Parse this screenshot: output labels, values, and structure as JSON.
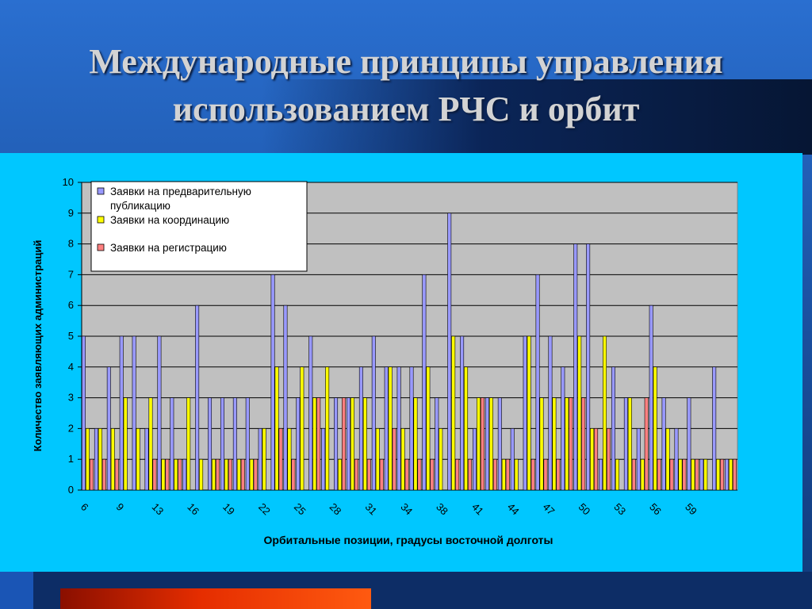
{
  "slide": {
    "title_line1": "Международные принципы управления",
    "title_line2": "использованием РЧС  и орбит"
  },
  "colors": {
    "plot_bg": "#c0c0c0",
    "panel_bg": "#00c7ff",
    "series1": "#9999ff",
    "series2": "#ffff00",
    "series3": "#ff8080"
  },
  "chart_data": {
    "type": "bar",
    "title": "",
    "xlabel": "Орбитальные позиции, градусы восточной долготы",
    "ylabel": "Количество заявляющих администраций",
    "ylim": [
      0,
      10
    ],
    "yticks": [
      0,
      1,
      2,
      3,
      4,
      5,
      6,
      7,
      8,
      9,
      10
    ],
    "x_tick_labels": [
      "6",
      "9",
      "13",
      "16",
      "19",
      "22",
      "25",
      "28",
      "31",
      "34",
      "38",
      "41",
      "44",
      "47",
      "50",
      "53",
      "56",
      "59"
    ],
    "grid": true,
    "legend_position": "top-left",
    "series": [
      {
        "name": "Заявки на предварительную публикацию",
        "values": [
          5,
          2,
          4,
          5,
          5,
          2,
          5,
          3,
          1,
          6,
          3,
          3,
          3,
          3,
          2,
          7,
          6,
          3,
          5,
          2,
          3,
          3,
          4,
          5,
          4,
          4,
          4,
          7,
          3,
          9,
          5,
          2,
          3,
          3,
          2,
          5,
          7,
          5,
          4,
          8,
          8,
          1,
          4,
          3,
          2,
          6,
          3,
          2,
          3,
          1,
          4,
          1
        ]
      },
      {
        "name": "Заявки на координацию",
        "values": [
          2,
          2,
          2,
          3,
          2,
          3,
          1,
          1,
          3,
          1,
          1,
          1,
          1,
          1,
          2,
          4,
          2,
          4,
          3,
          4,
          1,
          3,
          3,
          2,
          4,
          2,
          3,
          4,
          2,
          5,
          4,
          3,
          3,
          1,
          1,
          5,
          3,
          3,
          3,
          5,
          2,
          5,
          1,
          3,
          1,
          4,
          2,
          1,
          1,
          1,
          1,
          1
        ]
      },
      {
        "name": "Заявки на регистрацию",
        "values": [
          1,
          1,
          1,
          0,
          0,
          1,
          1,
          1,
          0,
          0,
          1,
          1,
          1,
          1,
          0,
          2,
          1,
          0,
          3,
          0,
          3,
          1,
          1,
          1,
          2,
          1,
          1,
          1,
          0,
          1,
          1,
          3,
          1,
          1,
          0,
          1,
          1,
          1,
          3,
          3,
          2,
          2,
          0,
          1,
          3,
          1,
          1,
          1,
          1,
          0,
          1,
          1
        ]
      }
    ]
  }
}
